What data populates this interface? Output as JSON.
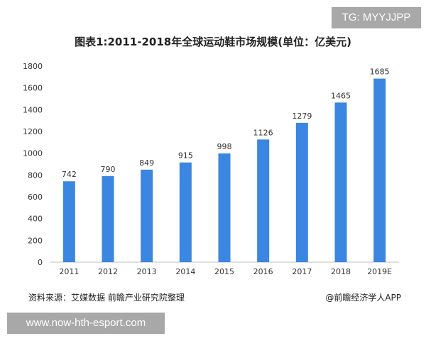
{
  "watermark_top": "TG: MYYJJPP",
  "watermark_bottom": "www.now-hth-esport.com",
  "source": "资料来源：艾媒数据 前瞻产业研究院整理",
  "credit": "@前瞻经济学人APP",
  "colors": {
    "bar": "#3a86e0",
    "axis": "#bfbfbf",
    "text": "#333333"
  },
  "chart_data": {
    "type": "bar",
    "title": "图表1:2011-2018年全球运动鞋市场规模(单位：亿美元)",
    "xlabel": "",
    "ylabel": "",
    "categories": [
      "2011",
      "2012",
      "2013",
      "2014",
      "2015",
      "2016",
      "2017",
      "2018",
      "2019E"
    ],
    "values": [
      742,
      790,
      849,
      915,
      998,
      1126,
      1279,
      1465,
      1685
    ],
    "ylim": [
      0,
      1800
    ],
    "yticks": [
      0,
      200,
      400,
      600,
      800,
      1000,
      1200,
      1400,
      1600,
      1800
    ],
    "grid": false,
    "data_labels": true
  }
}
